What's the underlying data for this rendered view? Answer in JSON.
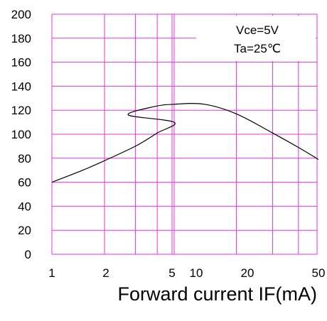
{
  "chart_data": {
    "type": "line",
    "xlabel": "Forward current IF(mA)",
    "ylabel": "",
    "ylim": [
      0,
      200
    ],
    "y_ticks": [
      0,
      20,
      40,
      60,
      80,
      100,
      120,
      140,
      160,
      180,
      200
    ],
    "x_tick_labels": [
      "1",
      "2",
      "5",
      "10",
      "20",
      "50"
    ],
    "grid": true,
    "legend_position": "top-right",
    "conditions": [
      "Vce=5V",
      "Ta=25℃"
    ],
    "series": [
      {
        "x": [
          1,
          1.5,
          2,
          3,
          4,
          5,
          6,
          8,
          10,
          14,
          20,
          30,
          40,
          50
        ],
        "y": [
          60,
          70,
          78,
          90,
          101,
          110,
          116,
          123,
          125,
          125,
          117,
          101,
          89,
          79
        ]
      }
    ]
  },
  "colors": {
    "grid": "#e633e6",
    "curve": "#000000",
    "background": "#ffffff"
  }
}
